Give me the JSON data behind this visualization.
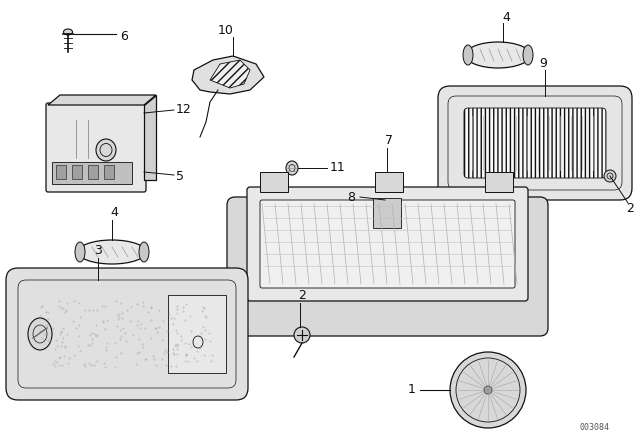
{
  "bg_color": "#ffffff",
  "fg_color": "#000000",
  "diagram_number": "003084",
  "line_color": "#111111",
  "fill_light": "#e8e8e8",
  "fill_mid": "#cccccc",
  "fill_dark": "#aaaaaa",
  "hatch_color": "#888888"
}
